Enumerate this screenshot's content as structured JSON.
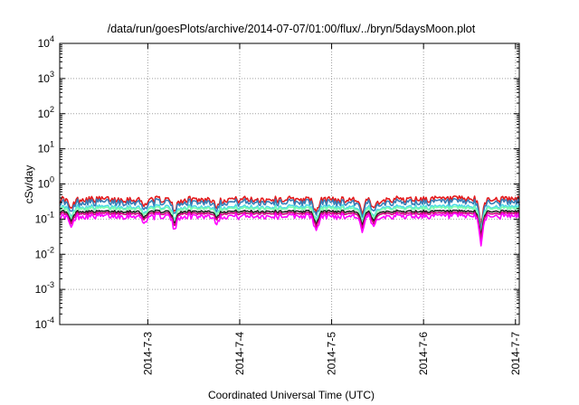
{
  "chart_data": {
    "type": "line",
    "title": "/data/run/goesPlots/archive/2014-07-07/01:00/flux/../bryn/5daysMoon.plot",
    "xlabel": "Coordinated Universal Time (UTC)",
    "ylabel": "cSv/day",
    "yscale": "log",
    "ylim": [
      0.0001,
      10000
    ],
    "y_ticks": [
      {
        "base": "10",
        "exp": "-4",
        "value": 0.0001
      },
      {
        "base": "10",
        "exp": "-3",
        "value": 0.001
      },
      {
        "base": "10",
        "exp": "-2",
        "value": 0.01
      },
      {
        "base": "10",
        "exp": "-1",
        "value": 0.1
      },
      {
        "base": "10",
        "exp": "0",
        "value": 1
      },
      {
        "base": "10",
        "exp": "1",
        "value": 10
      },
      {
        "base": "10",
        "exp": "2",
        "value": 100
      },
      {
        "base": "10",
        "exp": "3",
        "value": 1000
      },
      {
        "base": "10",
        "exp": "4",
        "value": 10000
      }
    ],
    "xlim": [
      "2014-07-02 01:00",
      "2014-07-07 01:00"
    ],
    "x_ticks": [
      "2014-7-3",
      "2014-7-4",
      "2014-7-5",
      "2014-7-6",
      "2014-7-7"
    ],
    "x_tick_dates": [
      "2014-07-03",
      "2014-07-04",
      "2014-07-05",
      "2014-07-06",
      "2014-07-07"
    ],
    "grid": true,
    "legend": "none",
    "series": [
      {
        "color": "#e41a1c",
        "base": 0.36,
        "spread": 0.22,
        "dip_scale": 0.55
      },
      {
        "color": "#377eb8",
        "base": 0.3,
        "spread": 0.22,
        "dip_scale": 0.5
      },
      {
        "color": "#4dd9e6",
        "base": 0.22,
        "spread": 0.15,
        "dip_scale": 0.6
      },
      {
        "color": "#7fffb0",
        "base": 0.2,
        "spread": 0.12,
        "dip_scale": 0.6
      },
      {
        "color": "#222222",
        "base": 0.165,
        "spread": 0.08,
        "dip_scale": 0.7
      },
      {
        "color": "#cc0077",
        "base": 0.145,
        "spread": 0.08,
        "dip_scale": 0.6
      },
      {
        "color": "#ff00ff",
        "base": 0.12,
        "spread": 0.18,
        "dip_scale": 0.35
      }
    ],
    "dips": [
      {
        "date": "2014-07-02 04:00",
        "depth": 0.55
      },
      {
        "date": "2014-07-02 23:00",
        "depth": 0.7
      },
      {
        "date": "2014-07-03 07:00",
        "depth": 0.5
      },
      {
        "date": "2014-07-03 18:00",
        "depth": 0.75
      },
      {
        "date": "2014-07-04 20:00",
        "depth": 0.45
      },
      {
        "date": "2014-07-05 08:00",
        "depth": 0.45
      },
      {
        "date": "2014-07-05 11:00",
        "depth": 0.55
      },
      {
        "date": "2014-07-06 15:00",
        "depth": 0.25
      }
    ]
  }
}
